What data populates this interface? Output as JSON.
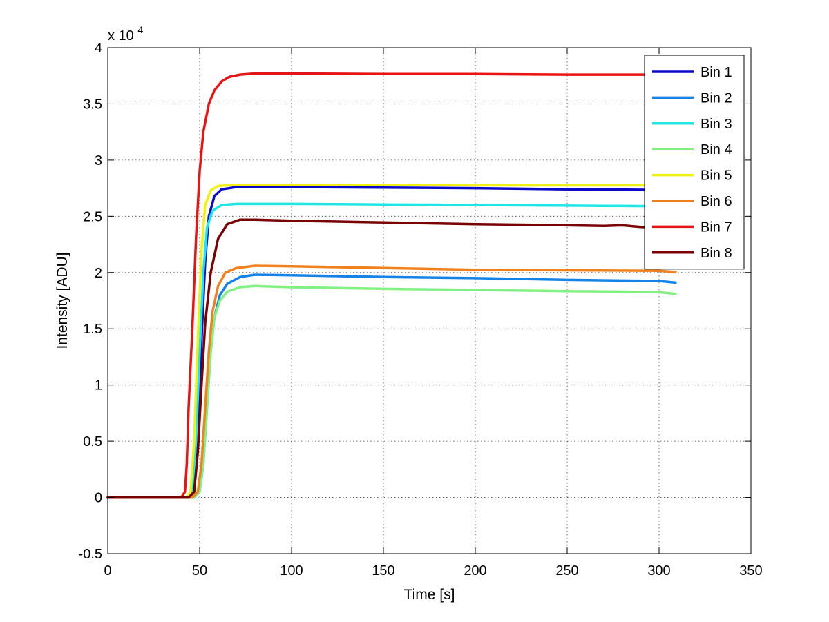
{
  "chart_data": {
    "type": "line",
    "title": "",
    "xlabel": "Time [s]",
    "ylabel": "Intensity [ADU]",
    "y_multiplier_label": "x 10",
    "y_multiplier_exponent": "4",
    "xlim": [
      0,
      350
    ],
    "ylim": [
      -0.5,
      4
    ],
    "x_ticks": [
      0,
      50,
      100,
      150,
      200,
      250,
      300,
      350
    ],
    "x_tick_labels": [
      "0",
      "50",
      "100",
      "150",
      "200",
      "250",
      "300",
      "350"
    ],
    "y_ticks": [
      -0.5,
      0,
      0.5,
      1,
      1.5,
      2,
      2.5,
      3,
      3.5,
      4
    ],
    "y_tick_labels": [
      "-0.5",
      "0",
      "0.5",
      "1",
      "1.5",
      "2",
      "2.5",
      "3",
      "3.5",
      "4"
    ],
    "grid": true,
    "legend_position": "top-right",
    "series": [
      {
        "name": "Bin 1",
        "color": "#0a0ac8",
        "points": [
          [
            0,
            0
          ],
          [
            44,
            0
          ],
          [
            47,
            0.05
          ],
          [
            49,
            0.5
          ],
          [
            51,
            1.4
          ],
          [
            53,
            2.1
          ],
          [
            55,
            2.5
          ],
          [
            58,
            2.68
          ],
          [
            62,
            2.74
          ],
          [
            70,
            2.76
          ],
          [
            100,
            2.76
          ],
          [
            150,
            2.755
          ],
          [
            200,
            2.75
          ],
          [
            250,
            2.74
          ],
          [
            300,
            2.735
          ]
        ]
      },
      {
        "name": "Bin 2",
        "color": "#1482e6",
        "points": [
          [
            0,
            0
          ],
          [
            47,
            0
          ],
          [
            50,
            0.05
          ],
          [
            52,
            0.3
          ],
          [
            54,
            0.8
          ],
          [
            56,
            1.3
          ],
          [
            58,
            1.6
          ],
          [
            61,
            1.8
          ],
          [
            65,
            1.9
          ],
          [
            72,
            1.96
          ],
          [
            80,
            1.98
          ],
          [
            100,
            1.975
          ],
          [
            150,
            1.96
          ],
          [
            200,
            1.95
          ],
          [
            250,
            1.935
          ],
          [
            300,
            1.925
          ],
          [
            309,
            1.91
          ]
        ]
      },
      {
        "name": "Bin 3",
        "color": "#1ee6e6",
        "points": [
          [
            0,
            0
          ],
          [
            44,
            0
          ],
          [
            46,
            0.05
          ],
          [
            48,
            0.5
          ],
          [
            50,
            1.3
          ],
          [
            52,
            2.0
          ],
          [
            54,
            2.4
          ],
          [
            57,
            2.55
          ],
          [
            62,
            2.6
          ],
          [
            70,
            2.61
          ],
          [
            100,
            2.61
          ],
          [
            150,
            2.605
          ],
          [
            200,
            2.6
          ],
          [
            250,
            2.595
          ],
          [
            300,
            2.59
          ]
        ]
      },
      {
        "name": "Bin 4",
        "color": "#82f082",
        "points": [
          [
            0,
            0
          ],
          [
            47,
            0
          ],
          [
            50,
            0.05
          ],
          [
            52,
            0.3
          ],
          [
            54,
            0.8
          ],
          [
            56,
            1.3
          ],
          [
            58,
            1.6
          ],
          [
            61,
            1.75
          ],
          [
            65,
            1.83
          ],
          [
            72,
            1.87
          ],
          [
            80,
            1.88
          ],
          [
            100,
            1.87
          ],
          [
            150,
            1.855
          ],
          [
            200,
            1.845
          ],
          [
            250,
            1.835
          ],
          [
            280,
            1.83
          ],
          [
            300,
            1.825
          ],
          [
            309,
            1.81
          ]
        ]
      },
      {
        "name": "Bin 5",
        "color": "#f0f014",
        "points": [
          [
            0,
            0
          ],
          [
            43,
            0
          ],
          [
            45,
            0.05
          ],
          [
            47,
            0.5
          ],
          [
            49,
            1.4
          ],
          [
            51,
            2.2
          ],
          [
            53,
            2.6
          ],
          [
            56,
            2.73
          ],
          [
            60,
            2.77
          ],
          [
            70,
            2.78
          ],
          [
            100,
            2.78
          ],
          [
            150,
            2.78
          ],
          [
            200,
            2.775
          ],
          [
            250,
            2.775
          ],
          [
            300,
            2.775
          ]
        ]
      },
      {
        "name": "Bin 6",
        "color": "#f0821e",
        "points": [
          [
            0,
            0
          ],
          [
            46,
            0
          ],
          [
            49,
            0.05
          ],
          [
            51,
            0.3
          ],
          [
            53,
            0.8
          ],
          [
            55,
            1.3
          ],
          [
            57,
            1.65
          ],
          [
            60,
            1.88
          ],
          [
            64,
            2.0
          ],
          [
            70,
            2.04
          ],
          [
            80,
            2.06
          ],
          [
            100,
            2.055
          ],
          [
            150,
            2.04
          ],
          [
            200,
            2.025
          ],
          [
            250,
            2.02
          ],
          [
            300,
            2.015
          ],
          [
            309,
            2.005
          ]
        ]
      },
      {
        "name": "Bin 7",
        "color": "#e61414",
        "points": [
          [
            0,
            0
          ],
          [
            40,
            0
          ],
          [
            42,
            0.05
          ],
          [
            43,
            0.3
          ],
          [
            44,
            0.8
          ],
          [
            46,
            1.5
          ],
          [
            48,
            2.3
          ],
          [
            50,
            2.9
          ],
          [
            52,
            3.25
          ],
          [
            55,
            3.5
          ],
          [
            58,
            3.62
          ],
          [
            62,
            3.7
          ],
          [
            66,
            3.74
          ],
          [
            72,
            3.76
          ],
          [
            80,
            3.77
          ],
          [
            100,
            3.77
          ],
          [
            150,
            3.765
          ],
          [
            200,
            3.765
          ],
          [
            250,
            3.76
          ],
          [
            300,
            3.76
          ]
        ]
      },
      {
        "name": "Bin 8",
        "color": "#780000",
        "points": [
          [
            0,
            0
          ],
          [
            44,
            0
          ],
          [
            47,
            0.05
          ],
          [
            49,
            0.4
          ],
          [
            51,
            1.0
          ],
          [
            53,
            1.55
          ],
          [
            56,
            2.0
          ],
          [
            60,
            2.3
          ],
          [
            65,
            2.43
          ],
          [
            72,
            2.47
          ],
          [
            80,
            2.47
          ],
          [
            100,
            2.46
          ],
          [
            150,
            2.445
          ],
          [
            200,
            2.43
          ],
          [
            250,
            2.42
          ],
          [
            270,
            2.415
          ],
          [
            280,
            2.42
          ],
          [
            290,
            2.405
          ],
          [
            300,
            2.4
          ]
        ]
      }
    ]
  }
}
